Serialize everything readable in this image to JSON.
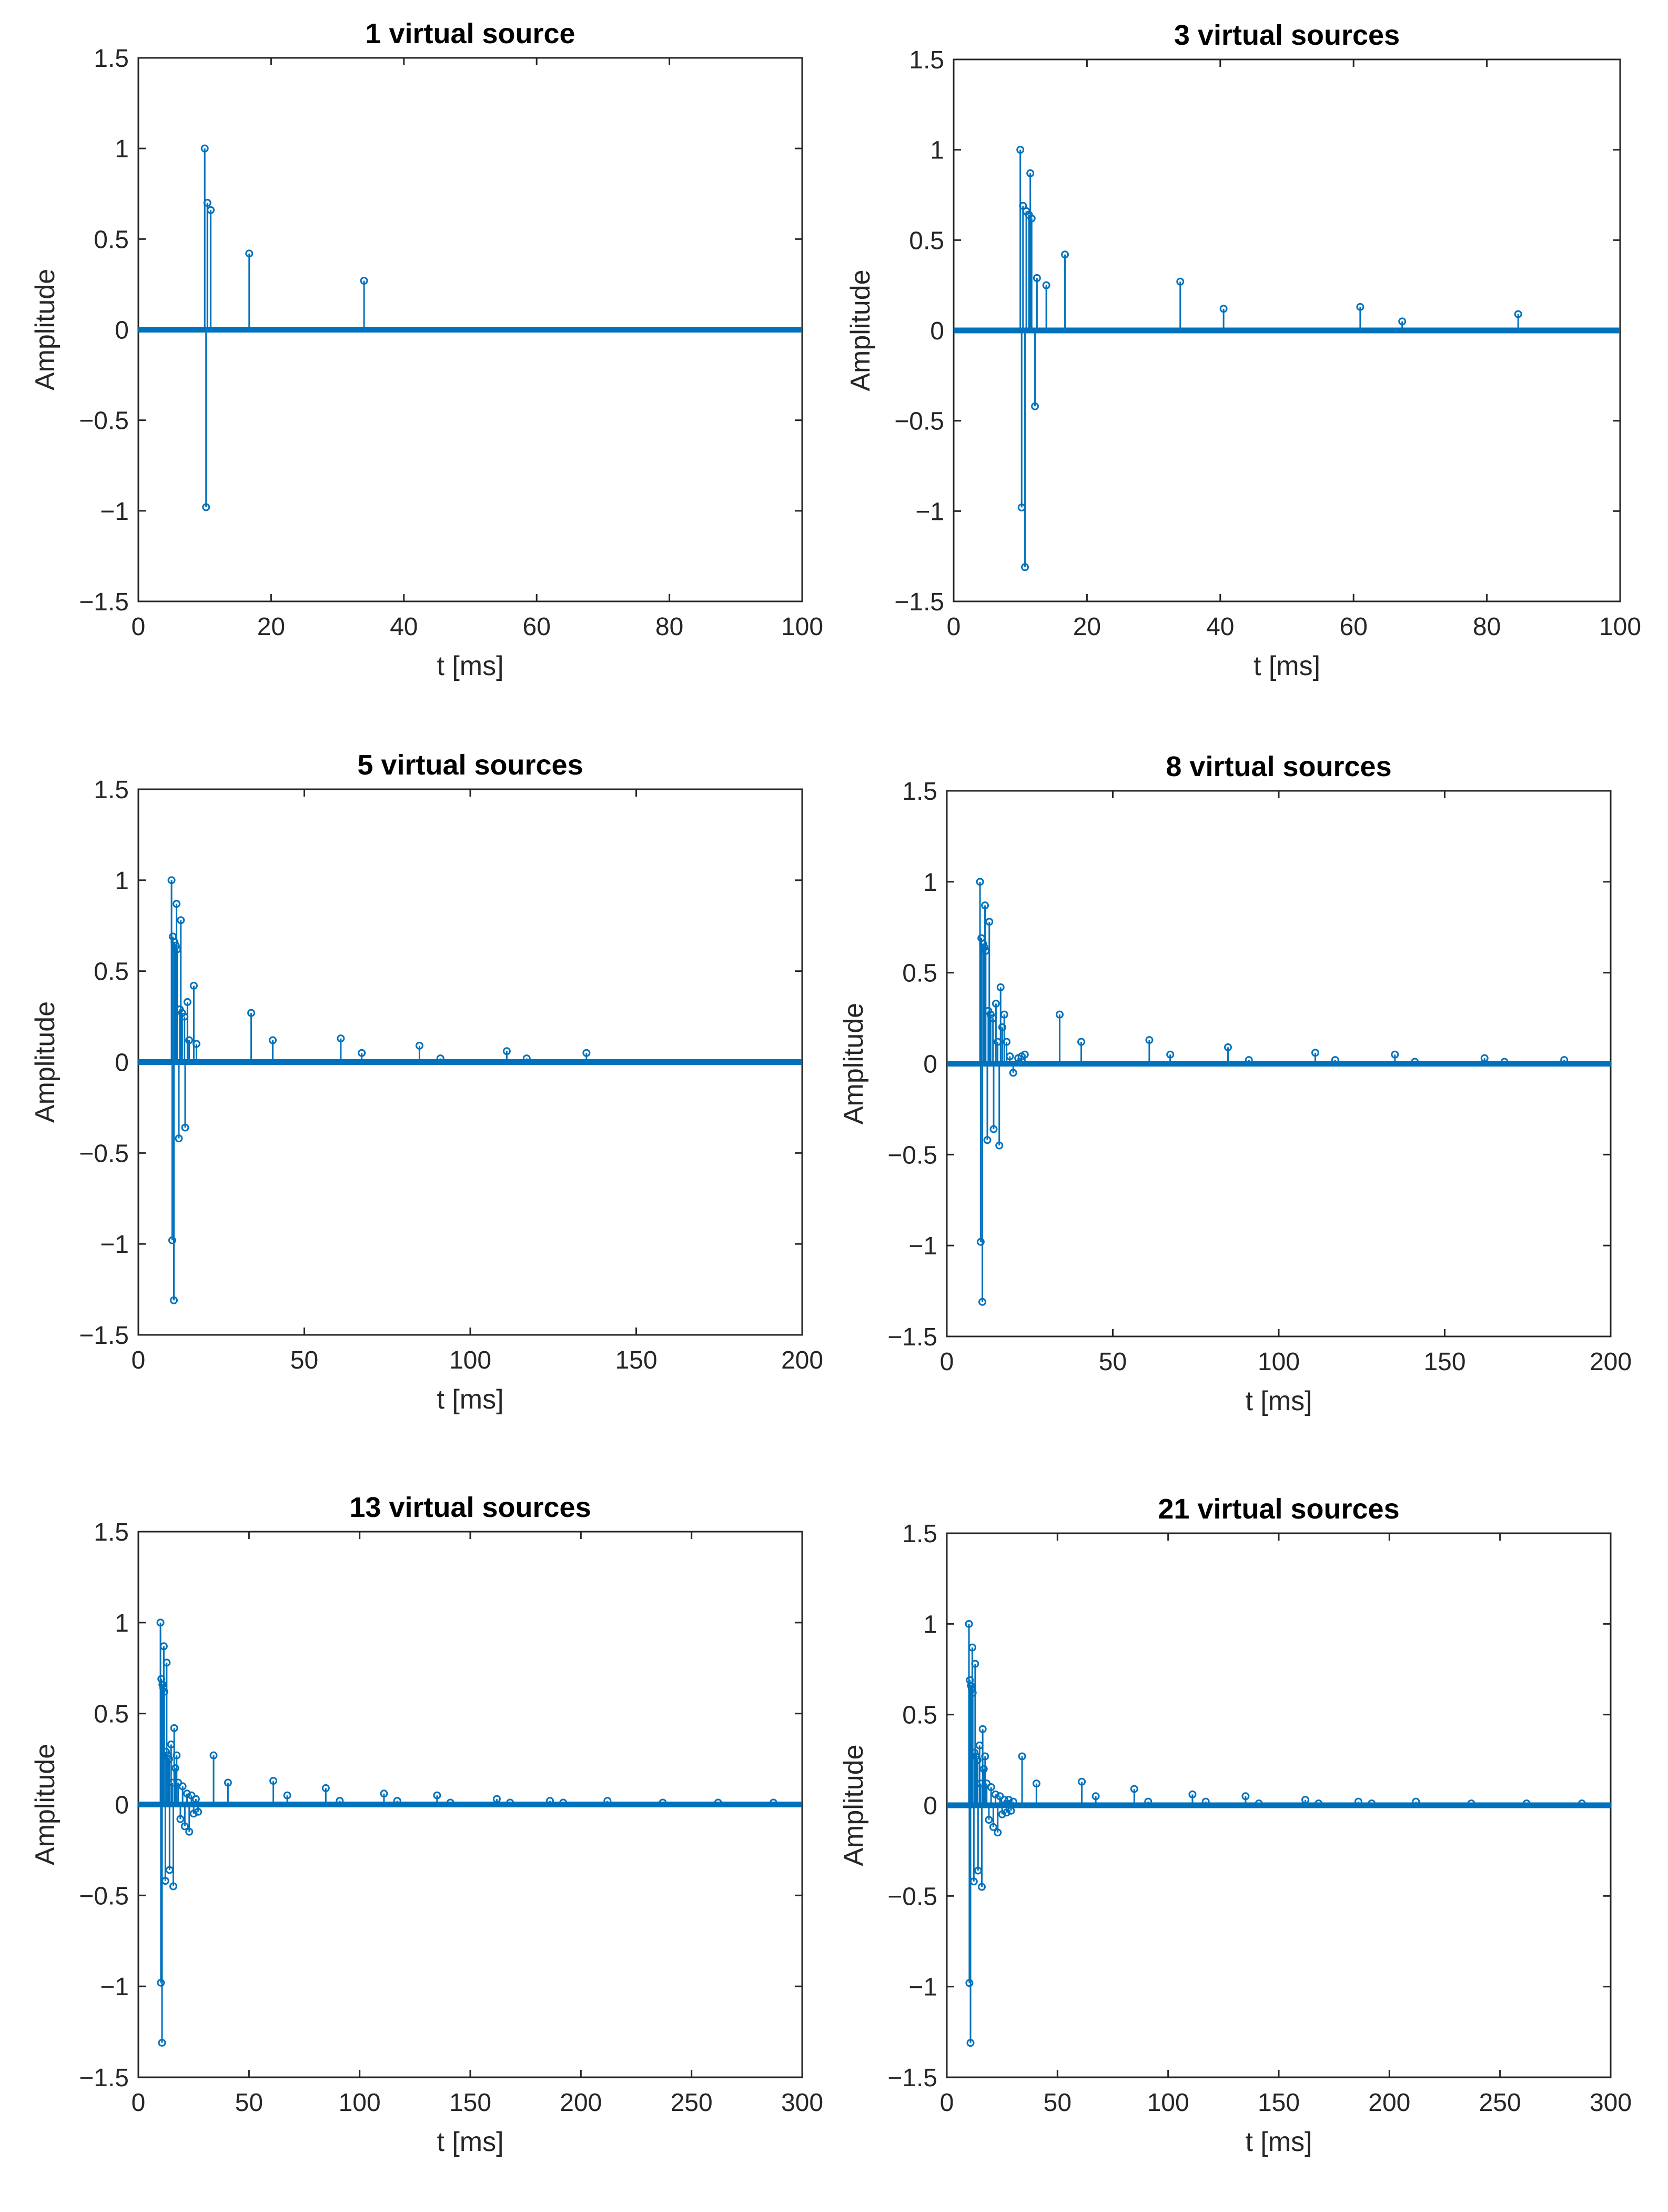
{
  "figure": {
    "background": "#ffffff",
    "series_color": "#0072BD"
  },
  "chart_data": [
    {
      "type": "stem",
      "title": "1 virtual source",
      "xlabel": "t [ms]",
      "ylabel": "Amplitude",
      "xlim": [
        0,
        100
      ],
      "ylim": [
        -1.5,
        1.5
      ],
      "xticks": [
        "0",
        "20",
        "40",
        "60",
        "80",
        "100"
      ],
      "yticks": [
        "1.5",
        "1",
        "0.5",
        "0",
        "−0.5",
        "−1",
        "−1.5"
      ],
      "points": [
        [
          10,
          1.0
        ],
        [
          10.2,
          -0.98
        ],
        [
          10.4,
          0.7
        ],
        [
          10.9,
          0.66
        ],
        [
          16.7,
          0.42
        ],
        [
          34,
          0.27
        ]
      ]
    },
    {
      "type": "stem",
      "title": "3 virtual sources",
      "xlabel": "t [ms]",
      "ylabel": "Amplitude",
      "xlim": [
        0,
        100
      ],
      "ylim": [
        -1.5,
        1.5
      ],
      "xticks": [
        "0",
        "20",
        "40",
        "60",
        "80",
        "100"
      ],
      "yticks": [
        "1.5",
        "1",
        "0.5",
        "0",
        "−0.5",
        "−1",
        "−1.5"
      ],
      "points": [
        [
          10,
          1.0
        ],
        [
          10.2,
          -0.98
        ],
        [
          10.4,
          0.69
        ],
        [
          10.7,
          -1.31
        ],
        [
          10.9,
          0.66
        ],
        [
          11.3,
          0.64
        ],
        [
          11.5,
          0.87
        ],
        [
          11.7,
          0.62
        ],
        [
          12.2,
          -0.42
        ],
        [
          12.5,
          0.29
        ],
        [
          13.9,
          0.25
        ],
        [
          16.7,
          0.42
        ],
        [
          34,
          0.27
        ],
        [
          40.5,
          0.12
        ],
        [
          61,
          0.13
        ],
        [
          67.3,
          0.05
        ],
        [
          84.7,
          0.09
        ]
      ]
    },
    {
      "type": "stem",
      "title": "5 virtual sources",
      "xlabel": "t [ms]",
      "ylabel": "Amplitude",
      "xlim": [
        0,
        200
      ],
      "ylim": [
        -1.5,
        1.5
      ],
      "xticks": [
        "0",
        "50",
        "100",
        "150",
        "200"
      ],
      "yticks": [
        "1.5",
        "1",
        "0.5",
        "0",
        "−0.5",
        "−1",
        "−1.5"
      ],
      "points": [
        [
          10,
          1.0
        ],
        [
          10.2,
          -0.98
        ],
        [
          10.4,
          0.69
        ],
        [
          10.7,
          -1.31
        ],
        [
          10.9,
          0.66
        ],
        [
          11.3,
          0.64
        ],
        [
          11.5,
          0.87
        ],
        [
          11.7,
          0.62
        ],
        [
          12.2,
          -0.42
        ],
        [
          12.5,
          0.29
        ],
        [
          12.8,
          0.78
        ],
        [
          13.2,
          0.27
        ],
        [
          13.9,
          0.25
        ],
        [
          14.1,
          -0.36
        ],
        [
          14.8,
          0.33
        ],
        [
          15.3,
          0.12
        ],
        [
          16.7,
          0.42
        ],
        [
          17.5,
          0.1
        ],
        [
          34,
          0.27
        ],
        [
          40.5,
          0.12
        ],
        [
          61,
          0.13
        ],
        [
          67.3,
          0.05
        ],
        [
          84.7,
          0.09
        ],
        [
          91,
          0.02
        ],
        [
          111,
          0.06
        ],
        [
          117,
          0.02
        ],
        [
          135,
          0.05
        ]
      ]
    },
    {
      "type": "stem",
      "title": "8 virtual sources",
      "xlabel": "t [ms]",
      "ylabel": "Amplitude",
      "xlim": [
        0,
        200
      ],
      "ylim": [
        -1.5,
        1.5
      ],
      "xticks": [
        "0",
        "50",
        "100",
        "150",
        "200"
      ],
      "yticks": [
        "1.5",
        "1",
        "0.5",
        "0",
        "−0.5",
        "−1",
        "−1.5"
      ],
      "points": [
        [
          10,
          1.0
        ],
        [
          10.2,
          -0.98
        ],
        [
          10.4,
          0.69
        ],
        [
          10.7,
          -1.31
        ],
        [
          10.9,
          0.66
        ],
        [
          11.3,
          0.64
        ],
        [
          11.5,
          0.87
        ],
        [
          11.7,
          0.62
        ],
        [
          12.2,
          -0.42
        ],
        [
          12.5,
          0.29
        ],
        [
          12.8,
          0.78
        ],
        [
          13.2,
          0.27
        ],
        [
          13.9,
          0.25
        ],
        [
          14.1,
          -0.36
        ],
        [
          14.8,
          0.33
        ],
        [
          15.3,
          0.12
        ],
        [
          15.8,
          -0.45
        ],
        [
          16.2,
          0.42
        ],
        [
          16.7,
          0.2
        ],
        [
          17.3,
          0.27
        ],
        [
          18,
          0.12
        ],
        [
          19,
          0.04
        ],
        [
          20,
          -0.05
        ],
        [
          21.5,
          0.03
        ],
        [
          22.5,
          0.04
        ],
        [
          23.5,
          0.05
        ],
        [
          34,
          0.27
        ],
        [
          40.5,
          0.12
        ],
        [
          61,
          0.13
        ],
        [
          67.3,
          0.05
        ],
        [
          84.7,
          0.09
        ],
        [
          91,
          0.02
        ],
        [
          111,
          0.06
        ],
        [
          117,
          0.02
        ],
        [
          135,
          0.05
        ],
        [
          141,
          0.01
        ],
        [
          162,
          0.03
        ],
        [
          168,
          0.01
        ],
        [
          186,
          0.02
        ]
      ]
    },
    {
      "type": "stem",
      "title": "13 virtual sources",
      "xlabel": "t [ms]",
      "ylabel": "Amplitude",
      "xlim": [
        0,
        300
      ],
      "ylim": [
        -1.5,
        1.5
      ],
      "xticks": [
        "0",
        "50",
        "100",
        "150",
        "200",
        "250",
        "300"
      ],
      "yticks": [
        "1.5",
        "1",
        "0.5",
        "0",
        "−0.5",
        "−1",
        "−1.5"
      ],
      "points": [
        [
          10,
          1.0
        ],
        [
          10.2,
          -0.98
        ],
        [
          10.4,
          0.69
        ],
        [
          10.7,
          -1.31
        ],
        [
          10.9,
          0.66
        ],
        [
          11.3,
          0.64
        ],
        [
          11.5,
          0.87
        ],
        [
          11.7,
          0.62
        ],
        [
          12.2,
          -0.42
        ],
        [
          12.5,
          0.29
        ],
        [
          12.8,
          0.78
        ],
        [
          13.2,
          0.27
        ],
        [
          13.9,
          0.25
        ],
        [
          14.1,
          -0.36
        ],
        [
          14.8,
          0.33
        ],
        [
          15.3,
          0.12
        ],
        [
          15.8,
          -0.45
        ],
        [
          16.2,
          0.42
        ],
        [
          16.7,
          0.2
        ],
        [
          17.3,
          0.27
        ],
        [
          18,
          0.12
        ],
        [
          19,
          -0.08
        ],
        [
          20,
          0.1
        ],
        [
          21,
          -0.12
        ],
        [
          22,
          0.06
        ],
        [
          23,
          -0.15
        ],
        [
          24,
          0.05
        ],
        [
          25,
          -0.05
        ],
        [
          26,
          0.03
        ],
        [
          27,
          -0.04
        ],
        [
          34,
          0.27
        ],
        [
          40.5,
          0.12
        ],
        [
          61,
          0.13
        ],
        [
          67.3,
          0.05
        ],
        [
          84.7,
          0.09
        ],
        [
          91,
          0.02
        ],
        [
          111,
          0.06
        ],
        [
          117,
          0.02
        ],
        [
          135,
          0.05
        ],
        [
          141,
          0.01
        ],
        [
          162,
          0.03
        ],
        [
          168,
          0.01
        ],
        [
          186,
          0.02
        ],
        [
          192,
          0.01
        ],
        [
          212,
          0.02
        ],
        [
          237,
          0.01
        ],
        [
          262,
          0.01
        ],
        [
          287,
          0.01
        ]
      ]
    },
    {
      "type": "stem",
      "title": "21 virtual sources",
      "xlabel": "t [ms]",
      "ylabel": "Amplitude",
      "xlim": [
        0,
        300
      ],
      "ylim": [
        -1.5,
        1.5
      ],
      "xticks": [
        "0",
        "50",
        "100",
        "150",
        "200",
        "250",
        "300"
      ],
      "yticks": [
        "1.5",
        "1",
        "0.5",
        "0",
        "−0.5",
        "−1",
        "−1.5"
      ],
      "points": [
        [
          10,
          1.0
        ],
        [
          10.2,
          -0.98
        ],
        [
          10.4,
          0.69
        ],
        [
          10.7,
          -1.31
        ],
        [
          10.9,
          0.66
        ],
        [
          11.3,
          0.64
        ],
        [
          11.5,
          0.87
        ],
        [
          11.7,
          0.62
        ],
        [
          12.2,
          -0.42
        ],
        [
          12.5,
          0.29
        ],
        [
          12.8,
          0.78
        ],
        [
          13.2,
          0.27
        ],
        [
          13.9,
          0.25
        ],
        [
          14.1,
          -0.36
        ],
        [
          14.8,
          0.33
        ],
        [
          15.3,
          0.12
        ],
        [
          15.8,
          -0.45
        ],
        [
          16.2,
          0.42
        ],
        [
          16.7,
          0.2
        ],
        [
          17.3,
          0.27
        ],
        [
          18,
          0.12
        ],
        [
          19,
          -0.08
        ],
        [
          20,
          0.1
        ],
        [
          21,
          -0.12
        ],
        [
          22,
          0.06
        ],
        [
          23,
          -0.15
        ],
        [
          24,
          0.05
        ],
        [
          25,
          -0.05
        ],
        [
          26,
          0.03
        ],
        [
          27,
          -0.04
        ],
        [
          28,
          0.03
        ],
        [
          29,
          -0.03
        ],
        [
          30,
          0.02
        ],
        [
          34,
          0.27
        ],
        [
          40.5,
          0.12
        ],
        [
          61,
          0.13
        ],
        [
          67.3,
          0.05
        ],
        [
          84.7,
          0.09
        ],
        [
          91,
          0.02
        ],
        [
          111,
          0.06
        ],
        [
          117,
          0.02
        ],
        [
          135,
          0.05
        ],
        [
          141,
          0.01
        ],
        [
          162,
          0.03
        ],
        [
          168,
          0.01
        ],
        [
          186,
          0.02
        ],
        [
          192,
          0.01
        ],
        [
          212,
          0.02
        ],
        [
          237,
          0.01
        ],
        [
          262,
          0.01
        ],
        [
          287,
          0.01
        ]
      ]
    }
  ]
}
